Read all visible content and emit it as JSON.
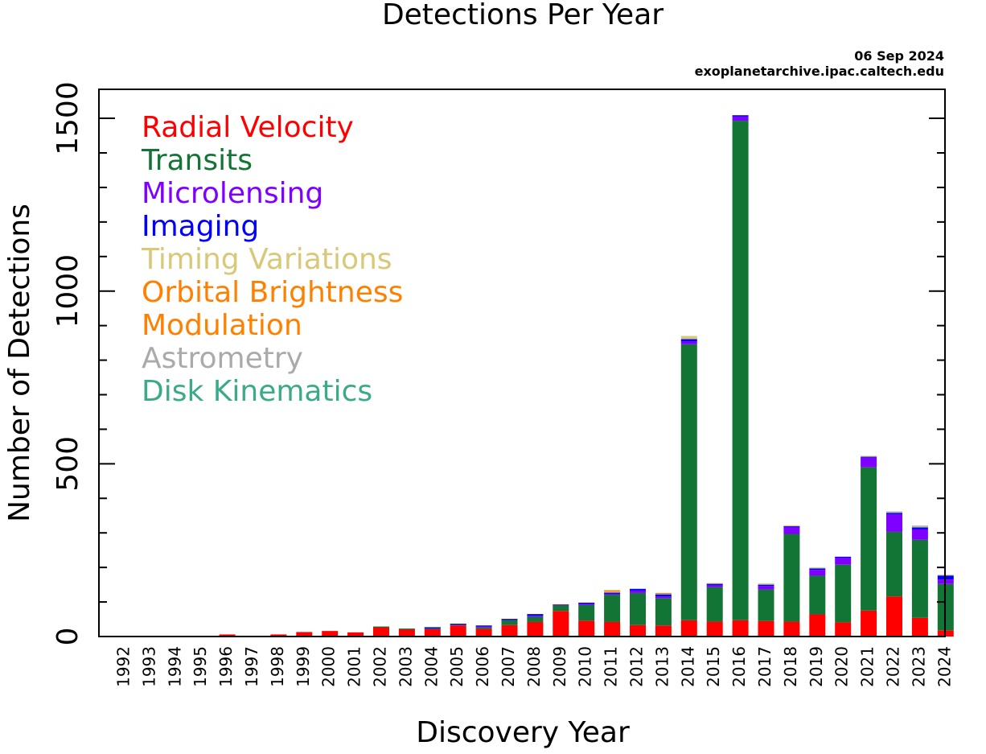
{
  "chart_data": {
    "type": "bar",
    "stacked": true,
    "title": "Detections Per Year",
    "date": "06 Sep 2024",
    "source": "exoplanetarchive.ipac.caltech.edu",
    "xlabel": "Discovery Year",
    "ylabel": "Number of Detections",
    "ylim": [
      0,
      1584
    ],
    "yticks_major": [
      0,
      500,
      1000,
      1500
    ],
    "ytick_labels": [
      "0",
      "500",
      "1000",
      "1500"
    ],
    "ytick_minor_step": 100,
    "legend_position": "top-left",
    "categories": [
      "1992",
      "1993",
      "1994",
      "1995",
      "1996",
      "1997",
      "1998",
      "1999",
      "2000",
      "2001",
      "2002",
      "2003",
      "2004",
      "2005",
      "2006",
      "2007",
      "2008",
      "2009",
      "2010",
      "2011",
      "2012",
      "2013",
      "2014",
      "2015",
      "2016",
      "2017",
      "2018",
      "2019",
      "2020",
      "2021",
      "2022",
      "2023",
      "2024"
    ],
    "series": [
      {
        "name": "Radial Velocity",
        "color": "#ff0000",
        "values": [
          0,
          0,
          0,
          1,
          6,
          1,
          6,
          13,
          16,
          12,
          28,
          22,
          21,
          32,
          22,
          33,
          42,
          74,
          46,
          42,
          33,
          32,
          47,
          43,
          47,
          45,
          43,
          64,
          41,
          75,
          116,
          54,
          18
        ]
      },
      {
        "name": "Transits",
        "color": "#137535",
        "values": [
          0,
          0,
          0,
          0,
          0,
          0,
          0,
          0,
          0,
          0,
          1,
          1,
          3,
          3,
          4,
          16,
          15,
          17,
          45,
          79,
          93,
          79,
          799,
          100,
          1446,
          91,
          254,
          112,
          167,
          415,
          187,
          226,
          134
        ]
      },
      {
        "name": "Microlensing",
        "color": "#7f00ff",
        "values": [
          0,
          0,
          0,
          0,
          0,
          0,
          0,
          0,
          0,
          0,
          0,
          0,
          2,
          1,
          3,
          1,
          3,
          2,
          3,
          4,
          7,
          5,
          8,
          6,
          12,
          10,
          20,
          17,
          21,
          28,
          51,
          30,
          13
        ]
      },
      {
        "name": "Imaging",
        "color": "#0000ff",
        "values": [
          0,
          0,
          0,
          0,
          0,
          0,
          0,
          0,
          0,
          0,
          0,
          0,
          1,
          1,
          3,
          1,
          5,
          0,
          4,
          2,
          5,
          6,
          7,
          4,
          4,
          4,
          3,
          4,
          2,
          3,
          4,
          6,
          12
        ]
      },
      {
        "name": "Timing Variations",
        "color": "#d8c878",
        "values": [
          2,
          1,
          1,
          0,
          0,
          0,
          0,
          0,
          0,
          0,
          0,
          0,
          0,
          0,
          0,
          0,
          0,
          0,
          0,
          3,
          0,
          3,
          9,
          2,
          0,
          4,
          2,
          3,
          0,
          2,
          3,
          4,
          2
        ]
      },
      {
        "name": "Orbital Brightness",
        "color": "#ff8000",
        "values": [
          0,
          0,
          0,
          0,
          0,
          0,
          0,
          0,
          0,
          0,
          0,
          0,
          0,
          0,
          0,
          0,
          0,
          0,
          0,
          3,
          0,
          1,
          0,
          0,
          0,
          0,
          0,
          0,
          0,
          0,
          0,
          0,
          0
        ]
      },
      {
        "name": "Modulation",
        "color": "#ff8000",
        "values": [
          0,
          0,
          0,
          0,
          0,
          0,
          0,
          0,
          0,
          0,
          0,
          0,
          0,
          0,
          0,
          0,
          0,
          0,
          0,
          1,
          0,
          0,
          0,
          0,
          0,
          0,
          0,
          0,
          0,
          0,
          0,
          0,
          0
        ]
      },
      {
        "name": "Astrometry",
        "color": "#aaaaaa",
        "values": [
          0,
          0,
          0,
          0,
          0,
          0,
          0,
          0,
          0,
          0,
          0,
          0,
          0,
          0,
          0,
          0,
          0,
          0,
          0,
          0,
          0,
          0,
          0,
          0,
          0,
          0,
          0,
          0,
          0,
          0,
          1,
          1,
          0
        ]
      },
      {
        "name": "Disk Kinematics",
        "color": "#3aaa8a",
        "values": [
          0,
          0,
          0,
          0,
          0,
          0,
          0,
          0,
          0,
          0,
          0,
          0,
          0,
          0,
          0,
          0,
          0,
          0,
          0,
          0,
          0,
          0,
          0,
          0,
          0,
          0,
          0,
          0,
          0,
          0,
          0,
          0,
          0
        ]
      }
    ]
  }
}
